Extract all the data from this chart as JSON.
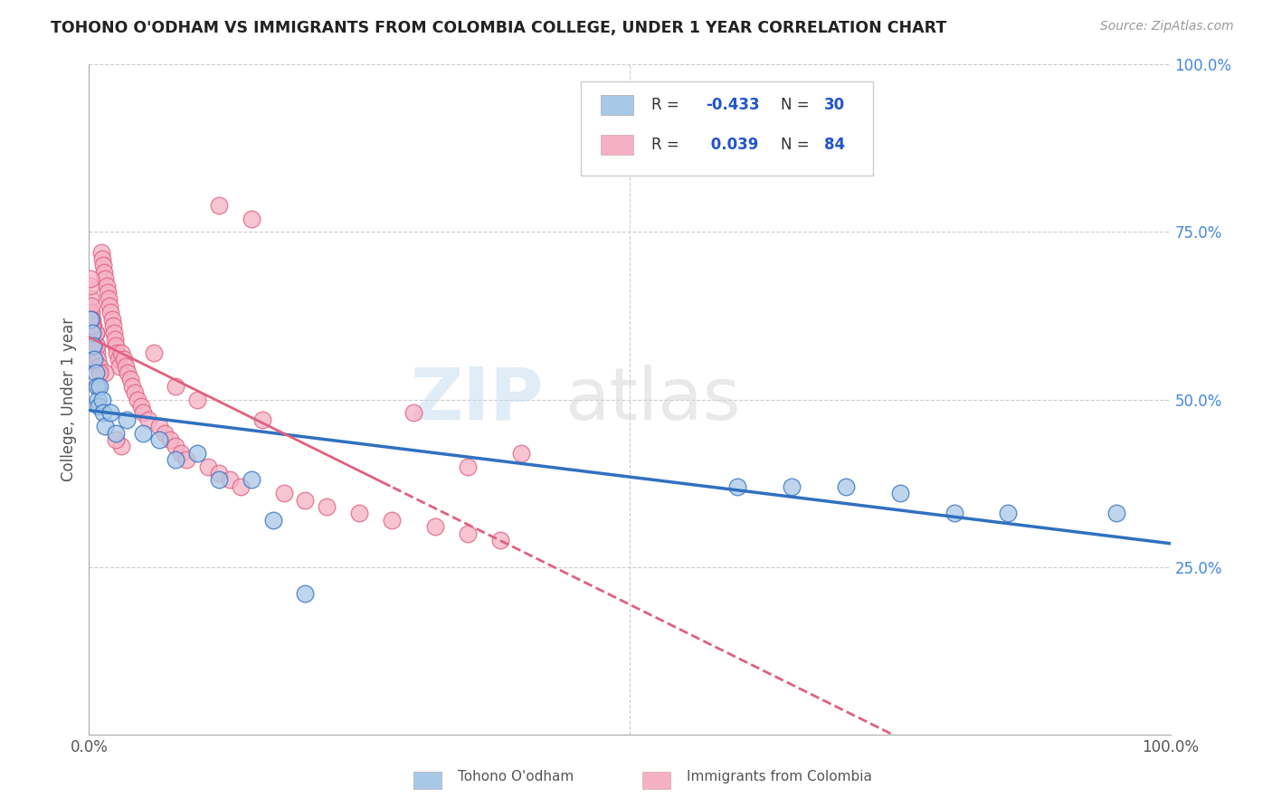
{
  "title": "TOHONO O'ODHAM VS IMMIGRANTS FROM COLOMBIA COLLEGE, UNDER 1 YEAR CORRELATION CHART",
  "source": "Source: ZipAtlas.com",
  "ylabel": "College, Under 1 year",
  "legend_blue_r": "-0.433",
  "legend_blue_n": "30",
  "legend_pink_r": " 0.039",
  "legend_pink_n": "84",
  "blue_color": "#a8c8e8",
  "pink_color": "#f5b0c5",
  "blue_line_color": "#3070c0",
  "pink_line_color": "#e06080",
  "blue_scatter_x": [
    0.001,
    0.003,
    0.004,
    0.005,
    0.006,
    0.007,
    0.008,
    0.009,
    0.01,
    0.012,
    0.013,
    0.015,
    0.02,
    0.025,
    0.035,
    0.05,
    0.065,
    0.08,
    0.1,
    0.12,
    0.15,
    0.17,
    0.2,
    0.6,
    0.65,
    0.7,
    0.75,
    0.8,
    0.85,
    0.95
  ],
  "blue_scatter_y": [
    0.62,
    0.6,
    0.58,
    0.56,
    0.54,
    0.52,
    0.5,
    0.49,
    0.52,
    0.5,
    0.48,
    0.46,
    0.48,
    0.45,
    0.47,
    0.45,
    0.44,
    0.41,
    0.42,
    0.38,
    0.38,
    0.32,
    0.21,
    0.37,
    0.37,
    0.37,
    0.36,
    0.33,
    0.33,
    0.33
  ],
  "pink_scatter_x": [
    0.001,
    0.001,
    0.002,
    0.002,
    0.003,
    0.003,
    0.004,
    0.004,
    0.005,
    0.005,
    0.006,
    0.006,
    0.007,
    0.007,
    0.008,
    0.009,
    0.01,
    0.01,
    0.011,
    0.012,
    0.013,
    0.014,
    0.015,
    0.016,
    0.017,
    0.018,
    0.019,
    0.02,
    0.021,
    0.022,
    0.023,
    0.024,
    0.025,
    0.026,
    0.027,
    0.028,
    0.03,
    0.032,
    0.034,
    0.036,
    0.038,
    0.04,
    0.042,
    0.045,
    0.048,
    0.05,
    0.055,
    0.06,
    0.065,
    0.07,
    0.075,
    0.08,
    0.085,
    0.09,
    0.1,
    0.11,
    0.12,
    0.13,
    0.14,
    0.16,
    0.18,
    0.2,
    0.22,
    0.25,
    0.28,
    0.3,
    0.32,
    0.35,
    0.38,
    0.12,
    0.15,
    0.08,
    0.03,
    0.025,
    0.015,
    0.01,
    0.008,
    0.006,
    0.004,
    0.003,
    0.002,
    0.001,
    0.35,
    0.4
  ],
  "pink_scatter_y": [
    0.65,
    0.67,
    0.63,
    0.64,
    0.62,
    0.61,
    0.6,
    0.61,
    0.59,
    0.6,
    0.58,
    0.6,
    0.57,
    0.58,
    0.56,
    0.55,
    0.54,
    0.55,
    0.72,
    0.71,
    0.7,
    0.69,
    0.68,
    0.67,
    0.66,
    0.65,
    0.64,
    0.63,
    0.62,
    0.61,
    0.6,
    0.59,
    0.58,
    0.57,
    0.56,
    0.55,
    0.57,
    0.56,
    0.55,
    0.54,
    0.53,
    0.52,
    0.51,
    0.5,
    0.49,
    0.48,
    0.47,
    0.57,
    0.46,
    0.45,
    0.44,
    0.43,
    0.42,
    0.41,
    0.5,
    0.4,
    0.39,
    0.38,
    0.37,
    0.47,
    0.36,
    0.35,
    0.34,
    0.33,
    0.32,
    0.48,
    0.31,
    0.3,
    0.29,
    0.79,
    0.77,
    0.52,
    0.43,
    0.44,
    0.54,
    0.54,
    0.52,
    0.6,
    0.58,
    0.61,
    0.62,
    0.68,
    0.4,
    0.42
  ]
}
